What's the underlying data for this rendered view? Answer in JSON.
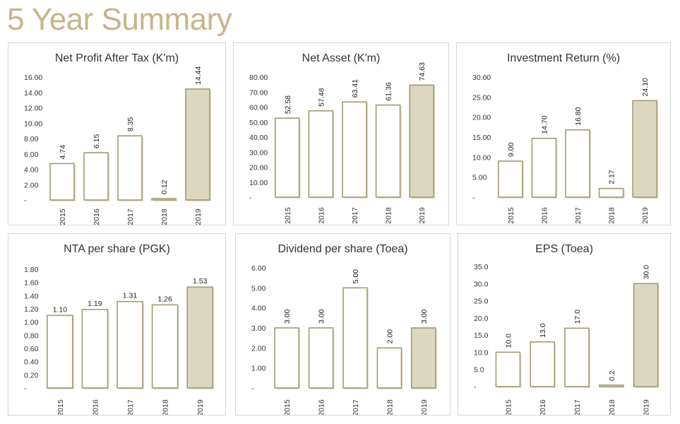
{
  "page": {
    "title": "5 Year Summary"
  },
  "colors": {
    "title": "#c9b48a",
    "bar_fill": "#ffffff",
    "bar_highlight_fill": "#dcd7c1",
    "bar_border": "#a39a70",
    "panel_border": "#d6d6d6"
  },
  "chart_data": [
    {
      "type": "bar",
      "title": "Net Profit After Tax (K'm)",
      "categories": [
        "2015",
        "2016",
        "2017",
        "2018",
        "2019"
      ],
      "values": [
        4.74,
        6.15,
        8.35,
        0.12,
        14.44
      ],
      "value_labels": [
        "4.74",
        "6.15",
        "8.35",
        "0.12",
        "14.44"
      ],
      "data_label_rotation": "vertical",
      "yticks": [
        "-",
        "2.00",
        "4.00",
        "6.00",
        "8.00",
        "10.00",
        "12.00",
        "14.00",
        "16.00"
      ],
      "ylim": [
        0,
        16
      ],
      "highlight_index": 4
    },
    {
      "type": "bar",
      "title": "Net Asset (K'm)",
      "categories": [
        "2015",
        "2016",
        "2017",
        "2018",
        "2019"
      ],
      "values": [
        52.58,
        57.48,
        63.41,
        61.36,
        74.63
      ],
      "value_labels": [
        "52.58",
        "57.48",
        "63.41",
        "61.36",
        "74.63"
      ],
      "data_label_rotation": "vertical",
      "yticks": [
        "-",
        "10.00",
        "20.00",
        "30.00",
        "40.00",
        "50.00",
        "60.00",
        "70.00",
        "80.00"
      ],
      "ylim": [
        0,
        80
      ],
      "highlight_index": 4
    },
    {
      "type": "bar",
      "title": "Investment Return (%)",
      "categories": [
        "2015",
        "2016",
        "2017",
        "2018",
        "2019"
      ],
      "values": [
        9.0,
        14.7,
        16.8,
        2.17,
        24.1
      ],
      "value_labels": [
        "9.00",
        "14.70",
        "16.80",
        "2.17",
        "24.10"
      ],
      "data_label_rotation": "vertical",
      "yticks": [
        "-",
        "5.00",
        "10.00",
        "15.00",
        "20.00",
        "25.00",
        "30.00"
      ],
      "ylim": [
        0,
        30
      ],
      "highlight_index": 4
    },
    {
      "type": "bar",
      "title": "NTA per share (PGK)",
      "categories": [
        "2015",
        "2016",
        "2017",
        "2018",
        "2019"
      ],
      "values": [
        1.1,
        1.19,
        1.31,
        1.26,
        1.53
      ],
      "value_labels": [
        "1.10",
        "1.19",
        "1.31",
        "1.26",
        "1.53"
      ],
      "data_label_rotation": "horizontal",
      "yticks": [
        "-",
        "0.20",
        "0.40",
        "0.60",
        "0.80",
        "1.00",
        "1.20",
        "1.40",
        "1.60",
        "1.80"
      ],
      "ylim": [
        0,
        1.8
      ],
      "highlight_index": 4
    },
    {
      "type": "bar",
      "title": "Dividend per share (Toea)",
      "categories": [
        "2015",
        "2016",
        "2017",
        "2018",
        "2019"
      ],
      "values": [
        3.0,
        3.0,
        5.0,
        2.0,
        3.0
      ],
      "value_labels": [
        "3.00",
        "3.00",
        "5.00",
        "2.00",
        "3.00"
      ],
      "data_label_rotation": "vertical",
      "yticks": [
        "-",
        "1.00",
        "2.00",
        "3.00",
        "4.00",
        "5.00",
        "6.00"
      ],
      "ylim": [
        0,
        6
      ],
      "highlight_index": 4
    },
    {
      "type": "bar",
      "title": "EPS (Toea)",
      "categories": [
        "2015",
        "2016",
        "2017",
        "2018",
        "2019"
      ],
      "values": [
        10.0,
        13.0,
        17.0,
        0.2,
        30.0
      ],
      "value_labels": [
        "10.0",
        "13.0",
        "17.0",
        "0.2",
        "30.0"
      ],
      "data_label_rotation": "vertical",
      "yticks": [
        "-",
        "5.0",
        "10.0",
        "15.0",
        "20.0",
        "25.0",
        "30.0",
        "35.0"
      ],
      "ylim": [
        0,
        35
      ],
      "highlight_index": 4
    }
  ]
}
